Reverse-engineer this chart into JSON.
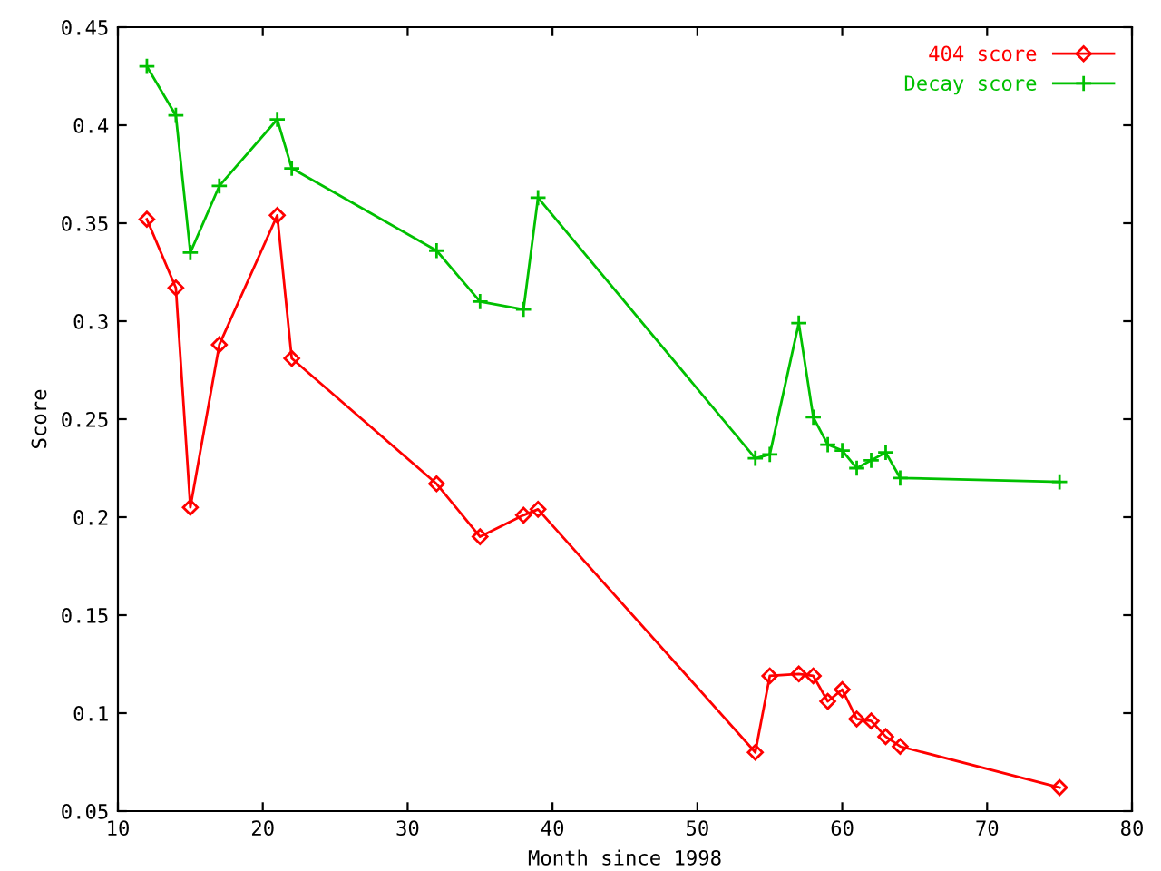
{
  "chart_data": {
    "type": "line",
    "xlabel": "Month since 1998",
    "ylabel": "Score",
    "x": [
      12,
      14,
      15,
      17,
      21,
      22,
      32,
      35,
      38,
      39,
      54,
      55,
      57,
      58,
      59,
      60,
      61,
      62,
      63,
      64,
      75
    ],
    "series": [
      {
        "name": "404 score",
        "color": "#ff0000",
        "marker": "diamond",
        "values": [
          0.352,
          0.317,
          0.205,
          0.288,
          0.354,
          0.281,
          0.217,
          0.19,
          0.201,
          0.204,
          0.08,
          0.119,
          0.12,
          0.119,
          0.106,
          0.112,
          0.097,
          0.096,
          0.088,
          0.083,
          0.062
        ]
      },
      {
        "name": "Decay score",
        "color": "#00c000",
        "marker": "cross",
        "values": [
          0.43,
          0.405,
          0.335,
          0.369,
          0.403,
          0.378,
          0.336,
          0.31,
          0.306,
          0.363,
          0.23,
          0.232,
          0.299,
          0.251,
          0.237,
          0.234,
          0.225,
          0.229,
          0.233,
          0.22,
          0.218
        ]
      }
    ],
    "xlim": [
      10,
      80
    ],
    "xticks": [
      10,
      20,
      30,
      40,
      50,
      60,
      70,
      80
    ],
    "ylim": [
      0.05,
      0.45
    ],
    "yticks": [
      0.05,
      0.1,
      0.15,
      0.2,
      0.25,
      0.3,
      0.35,
      0.4,
      0.45
    ],
    "legend": "top right",
    "grid": false,
    "line_style": "solid"
  }
}
